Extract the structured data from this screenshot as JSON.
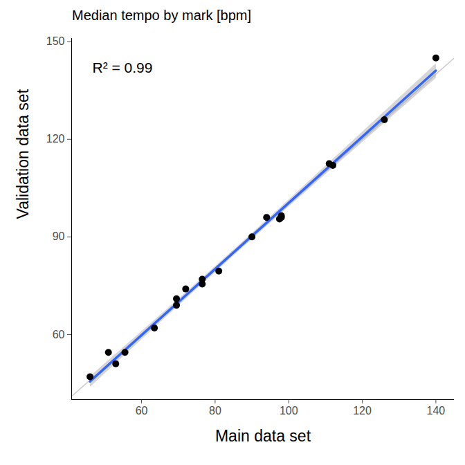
{
  "chart_data": {
    "type": "scatter",
    "title": "Median tempo by mark [bpm]",
    "x_label": "Main data set",
    "y_label": "Validation data set",
    "annotations": [
      "R² = 0.99"
    ],
    "x": [
      46,
      51,
      53,
      55.5,
      63.5,
      69.5,
      69.5,
      72,
      76.5,
      76.5,
      81,
      90,
      94,
      97.5,
      98,
      98,
      111,
      112,
      126,
      140
    ],
    "values": [
      47,
      54.5,
      51,
      54.5,
      62,
      71,
      69,
      74,
      77,
      75.5,
      79.5,
      90,
      96,
      95.5,
      96.5,
      96,
      112.5,
      112,
      126,
      145
    ],
    "color": "#000000",
    "marker": "circle",
    "identity_line": {
      "x": [
        40,
        151
      ],
      "y": [
        40,
        151
      ]
    },
    "xlim": [
      41,
      145
    ],
    "ylim": [
      40,
      151
    ],
    "xticks": [
      60,
      80,
      100,
      120,
      140
    ],
    "yticks": [
      60,
      90,
      120,
      150
    ],
    "grid": false
  }
}
